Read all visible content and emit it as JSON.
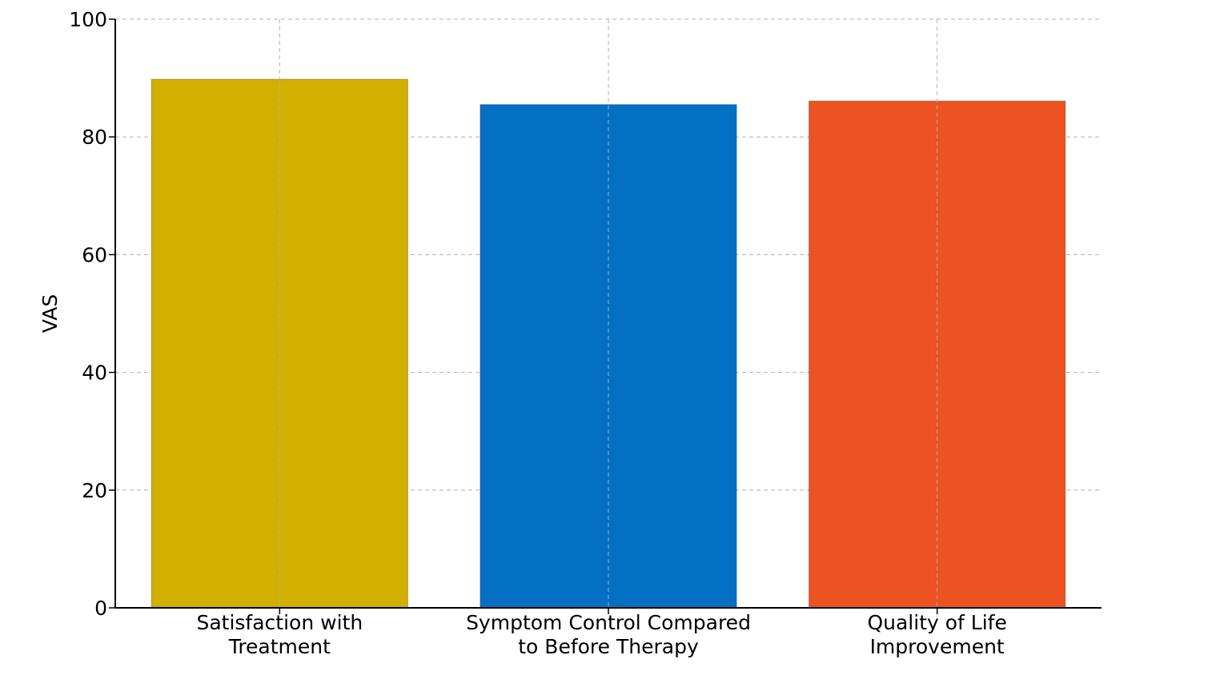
{
  "chart_data": {
    "type": "bar",
    "categories": [
      [
        "Satisfaction with",
        "Treatment"
      ],
      [
        "Symptom Control Compared",
        "to Before Therapy"
      ],
      [
        "Quality of Life",
        "Improvement"
      ]
    ],
    "values": [
      89.8,
      85.5,
      86.1
    ],
    "colors": [
      "#d1b000",
      "#0370c4",
      "#ec5222"
    ],
    "ylabel": "VAS",
    "xlabel": "",
    "title": "",
    "ylim": [
      0,
      100
    ],
    "yticks": [
      0,
      20,
      40,
      60,
      80,
      100
    ],
    "grid": true
  }
}
